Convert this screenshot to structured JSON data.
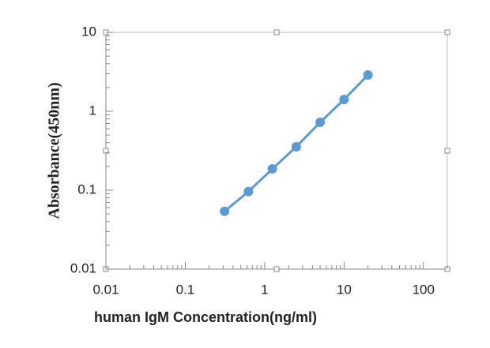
{
  "chart_data": {
    "type": "line",
    "x_label": "human IgM Concentration(ng/ml)",
    "y_label": "Absorbance(450nm)",
    "xscale": "log",
    "yscale": "log",
    "xlim": [
      0.01,
      200
    ],
    "ylim": [
      0.01,
      10
    ],
    "xticks": [
      0.01,
      0.1,
      1,
      10,
      100
    ],
    "yticks": [
      0.01,
      0.1,
      1,
      10
    ],
    "series": [
      {
        "color": "#5b9bd5",
        "x": [
          0.3125,
          0.625,
          1.25,
          2.5,
          5,
          10,
          20
        ],
        "values": [
          0.054,
          0.096,
          0.186,
          0.355,
          0.724,
          1.41,
          2.88
        ]
      }
    ]
  }
}
